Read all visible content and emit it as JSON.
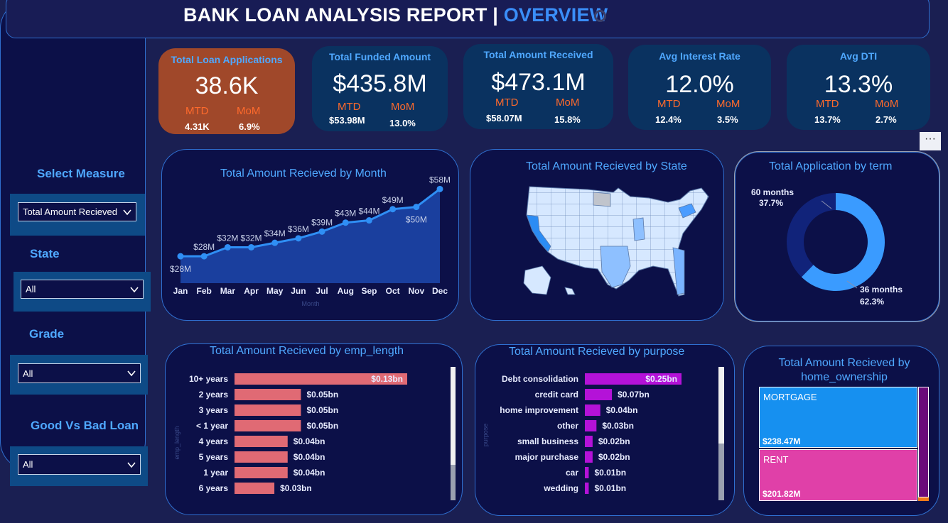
{
  "header": {
    "title_main": "BANK LOAN ANALYSIS REPORT",
    "separator": "|",
    "title_page": "OVERVIEW"
  },
  "filters": {
    "measure": {
      "label": "Select Measure",
      "value": "Total Amount Recieved"
    },
    "state": {
      "label": "State",
      "value": "All"
    },
    "grade": {
      "label": "Grade",
      "value": "All"
    },
    "loan_type": {
      "label": "Good Vs Bad Loan",
      "value": "All"
    }
  },
  "kpis": [
    {
      "title": "Total Loan Applications",
      "value": "38.6K",
      "mtd_label": "MTD",
      "mom_label": "MoM",
      "mtd": "4.31K",
      "mom": "6.9%"
    },
    {
      "title": "Total Funded Amount",
      "value": "$435.8M",
      "mtd_label": "MTD",
      "mom_label": "MoM",
      "mtd": "$53.98M",
      "mom": "13.0%"
    },
    {
      "title": "Total Amount Received",
      "value": "$473.1M",
      "mtd_label": "MTD",
      "mom_label": "MoM",
      "mtd": "$58.07M",
      "mom": "15.8%"
    },
    {
      "title": "Avg Interest Rate",
      "value": "12.0%",
      "mtd_label": "MTD",
      "mom_label": "MoM",
      "mtd": "12.4%",
      "mom": "3.5%"
    },
    {
      "title": "Avg DTI",
      "value": "13.3%",
      "mtd_label": "MTD",
      "mom_label": "MoM",
      "mtd": "13.7%",
      "mom": "2.7%"
    }
  ],
  "more_options": "···",
  "colors": {
    "accent": "#3a8ef8",
    "title_blue": "#4fa8ff",
    "kpi_highlight": "#a0482a",
    "emp_bar": "#e06a74",
    "purpose_bar": "#b412d8",
    "mortgage": "#1690f0",
    "rent": "#e040a8",
    "area": "#1a3f9e",
    "line": "#2f8ff5"
  },
  "chart_data": [
    {
      "type": "area",
      "title": "Total Amount Recieved by Month",
      "xlabel": "Month",
      "categories": [
        "Jan",
        "Feb",
        "Mar",
        "Apr",
        "May",
        "Jun",
        "Jul",
        "Aug",
        "Sep",
        "Oct",
        "Nov",
        "Dec"
      ],
      "values": [
        28,
        28,
        32,
        32,
        34,
        36,
        39,
        43,
        44,
        49,
        50,
        58
      ],
      "value_labels": [
        "$28M",
        "$28M",
        "$32M",
        "$32M",
        "$34M",
        "$36M",
        "$39M",
        "$43M",
        "$44M",
        "$49M",
        "$50M",
        "$58M"
      ],
      "ylim": [
        16,
        60
      ]
    },
    {
      "type": "map",
      "title": "Total Amount Recieved by State"
    },
    {
      "type": "pie",
      "title": "Total Application by term",
      "series": [
        {
          "name": "36 months",
          "value": 62.3,
          "label": "62.3%",
          "color": "#3a9bff"
        },
        {
          "name": "60 months",
          "value": 37.7,
          "label": "37.7%",
          "color": "#11237a"
        }
      ]
    },
    {
      "type": "bar",
      "title": "Total Amount Recieved by emp_length",
      "ylabel": "emp_length",
      "categories": [
        "10+ years",
        "2 years",
        "3 years",
        "< 1 year",
        "4 years",
        "5 years",
        "1 year",
        "6 years"
      ],
      "values": [
        0.13,
        0.05,
        0.05,
        0.05,
        0.04,
        0.04,
        0.04,
        0.03
      ],
      "value_labels": [
        "$0.13bn",
        "$0.05bn",
        "$0.05bn",
        "$0.05bn",
        "$0.04bn",
        "$0.04bn",
        "$0.04bn",
        "$0.03bn"
      ],
      "xlim": [
        0,
        0.13
      ]
    },
    {
      "type": "bar",
      "title": "Total Amount Recieved by purpose",
      "ylabel": "purpose",
      "categories": [
        "Debt consolidation",
        "credit card",
        "home improvement",
        "other",
        "small business",
        "major purchase",
        "car",
        "wedding"
      ],
      "values": [
        0.25,
        0.07,
        0.04,
        0.03,
        0.02,
        0.02,
        0.01,
        0.01
      ],
      "value_labels": [
        "$0.25bn",
        "$0.07bn",
        "$0.04bn",
        "$0.03bn",
        "$0.02bn",
        "$0.02bn",
        "$0.01bn",
        "$0.01bn"
      ],
      "xlim": [
        0,
        0.25
      ]
    },
    {
      "type": "treemap",
      "title": "Total Amount Recieved by home_ownership",
      "series": [
        {
          "name": "MORTGAGE",
          "value": 238.47,
          "label": "$238.47M",
          "color": "#1690f0"
        },
        {
          "name": "RENT",
          "value": 201.82,
          "label": "$201.82M",
          "color": "#e040a8"
        }
      ]
    }
  ]
}
